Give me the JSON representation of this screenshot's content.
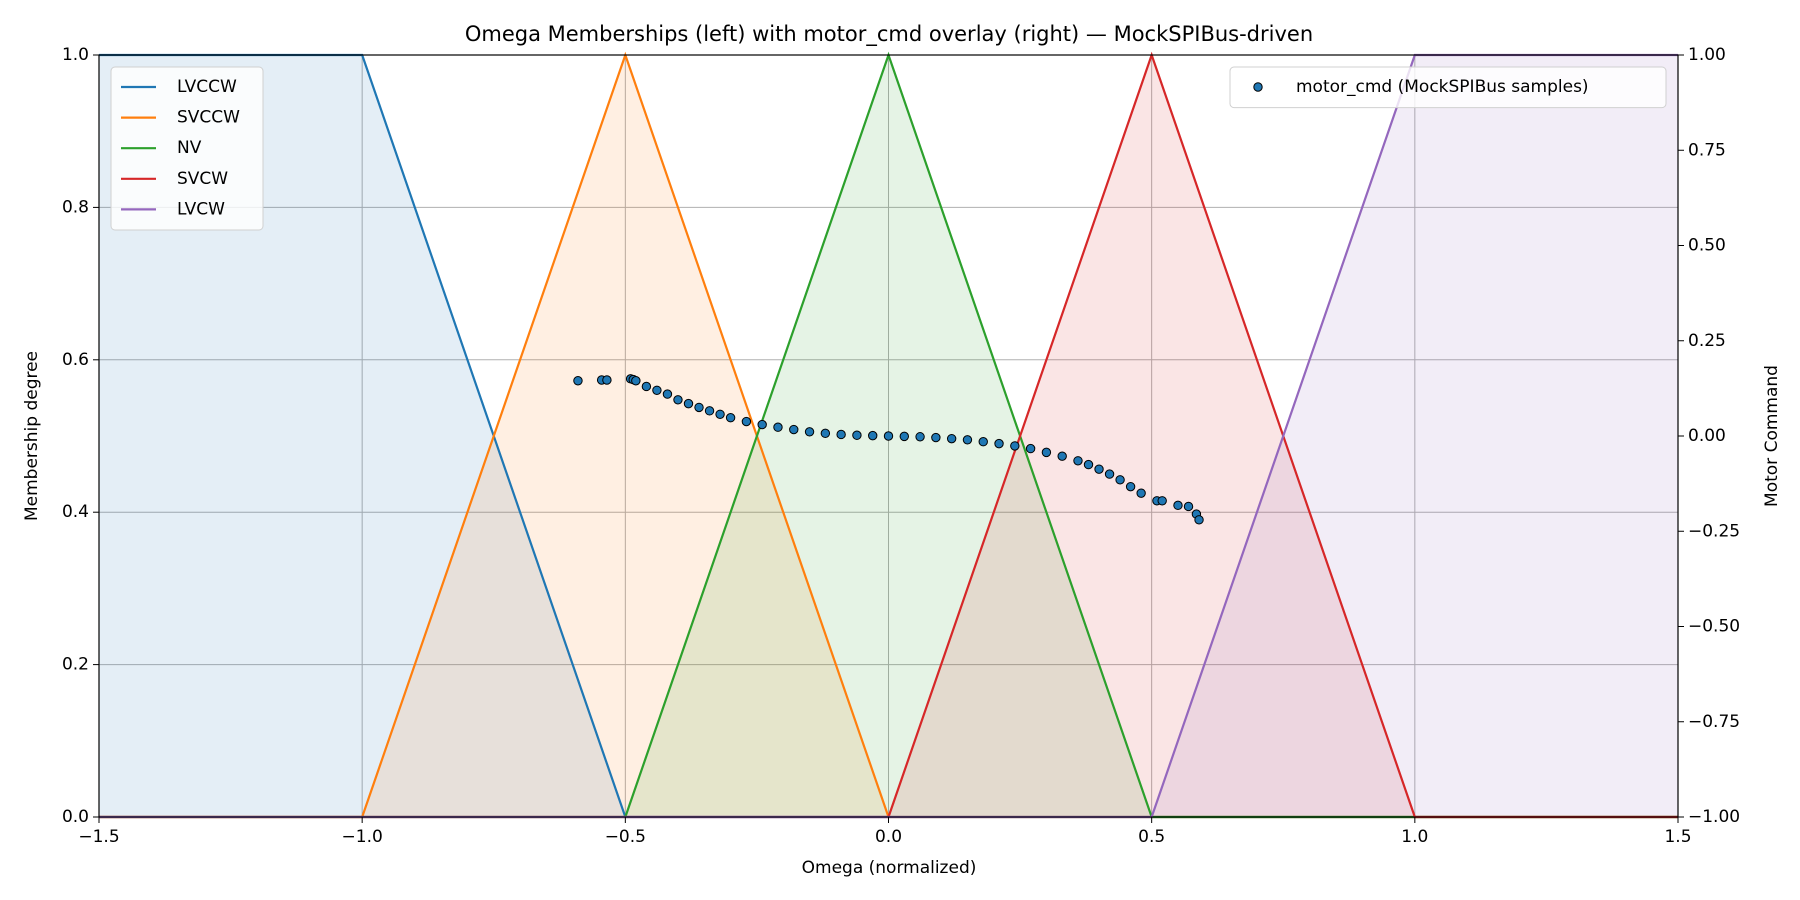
{
  "chart_data": {
    "type": "line",
    "title": "Omega Memberships (left) with motor_cmd overlay (right) — MockSPIBus-driven",
    "x_label": "Omega (normalized)",
    "y_label": "Membership degree",
    "y2_label": "Motor Command",
    "xlim": [
      -1.5,
      1.5
    ],
    "xticks": [
      {
        "value": -1.5,
        "label": "−1.5"
      },
      {
        "value": -1.0,
        "label": "−1.0"
      },
      {
        "value": -0.5,
        "label": "−0.5"
      },
      {
        "value": 0,
        "label": "0.0"
      },
      {
        "value": 0.5,
        "label": "0.5"
      },
      {
        "value": 1.0,
        "label": "1.0"
      },
      {
        "value": 1.5,
        "label": "1.5"
      }
    ],
    "ylim": [
      0,
      1
    ],
    "yticks": [
      {
        "value": 0,
        "label": "0.0"
      },
      {
        "value": 0.2,
        "label": "0.2"
      },
      {
        "value": 0.4,
        "label": "0.4"
      },
      {
        "value": 0.6,
        "label": "0.6"
      },
      {
        "value": 0.8,
        "label": "0.8"
      },
      {
        "value": 1,
        "label": "1.0"
      }
    ],
    "y2lim": [
      -1,
      1
    ],
    "y2ticks": [
      {
        "value": -1,
        "label": "−1.00"
      },
      {
        "value": -0.75,
        "label": "−0.75"
      },
      {
        "value": -0.5,
        "label": "−0.50"
      },
      {
        "value": -0.25,
        "label": "−0.25"
      },
      {
        "value": 0,
        "label": "0.00"
      },
      {
        "value": 0.25,
        "label": "0.25"
      },
      {
        "value": 0.5,
        "label": "0.50"
      },
      {
        "value": 0.75,
        "label": "0.75"
      },
      {
        "value": 1,
        "label": "1.00"
      }
    ],
    "grid": true,
    "legend": "upper left",
    "y2_legend": "upper right",
    "series": [
      {
        "name": "LVCCW",
        "color": "#1f77b4",
        "x": [
          -1.5,
          -1.0,
          -0.5,
          1.5
        ],
        "values": [
          1,
          1,
          0,
          0
        ]
      },
      {
        "name": "SVCCW",
        "color": "#ff7f0e",
        "x": [
          -1.5,
          -1.0,
          -0.5,
          0,
          1.5
        ],
        "values": [
          0,
          0,
          1,
          0,
          0
        ]
      },
      {
        "name": "NV",
        "color": "#2ca02c",
        "x": [
          -1.5,
          -0.5,
          0,
          0.5,
          1.5
        ],
        "values": [
          0,
          0,
          1,
          0,
          0
        ]
      },
      {
        "name": "SVCW",
        "color": "#d62728",
        "x": [
          -1.5,
          0,
          0.5,
          1.0,
          1.5
        ],
        "values": [
          0,
          0,
          1,
          0,
          0
        ]
      },
      {
        "name": "LVCW",
        "color": "#9467bd",
        "x": [
          -1.5,
          0.5,
          1.0,
          1.5
        ],
        "values": [
          0,
          0,
          1,
          1
        ]
      },
      {
        "name": "motor_cmd (MockSPIBus samples)",
        "type": "scatter",
        "axis": "y2",
        "color": "#1f77b4",
        "x": [
          -0.59,
          -0.545,
          -0.535,
          -0.49,
          -0.485,
          -0.48,
          -0.46,
          -0.44,
          -0.42,
          -0.4,
          -0.38,
          -0.36,
          -0.34,
          -0.32,
          -0.3,
          -0.27,
          -0.24,
          -0.21,
          -0.18,
          -0.15,
          -0.12,
          -0.09,
          -0.06,
          -0.03,
          0,
          0.03,
          0.06,
          0.09,
          0.12,
          0.15,
          0.18,
          0.21,
          0.24,
          0.27,
          0.3,
          0.33,
          0.36,
          0.38,
          0.4,
          0.42,
          0.44,
          0.46,
          0.48,
          0.51,
          0.52,
          0.55,
          0.57,
          0.585,
          0.59
        ],
        "values": [
          0.145,
          0.147,
          0.147,
          0.15,
          0.148,
          0.145,
          0.13,
          0.12,
          0.11,
          0.095,
          0.085,
          0.075,
          0.066,
          0.057,
          0.048,
          0.038,
          0.03,
          0.023,
          0.017,
          0.011,
          0.007,
          0.004,
          0.002,
          0.001,
          0,
          -0.001,
          -0.002,
          -0.004,
          -0.007,
          -0.01,
          -0.015,
          -0.02,
          -0.026,
          -0.033,
          -0.043,
          -0.053,
          -0.065,
          -0.075,
          -0.087,
          -0.1,
          -0.115,
          -0.133,
          -0.15,
          -0.17,
          -0.17,
          -0.182,
          -0.185,
          -0.205,
          -0.22
        ]
      }
    ]
  }
}
